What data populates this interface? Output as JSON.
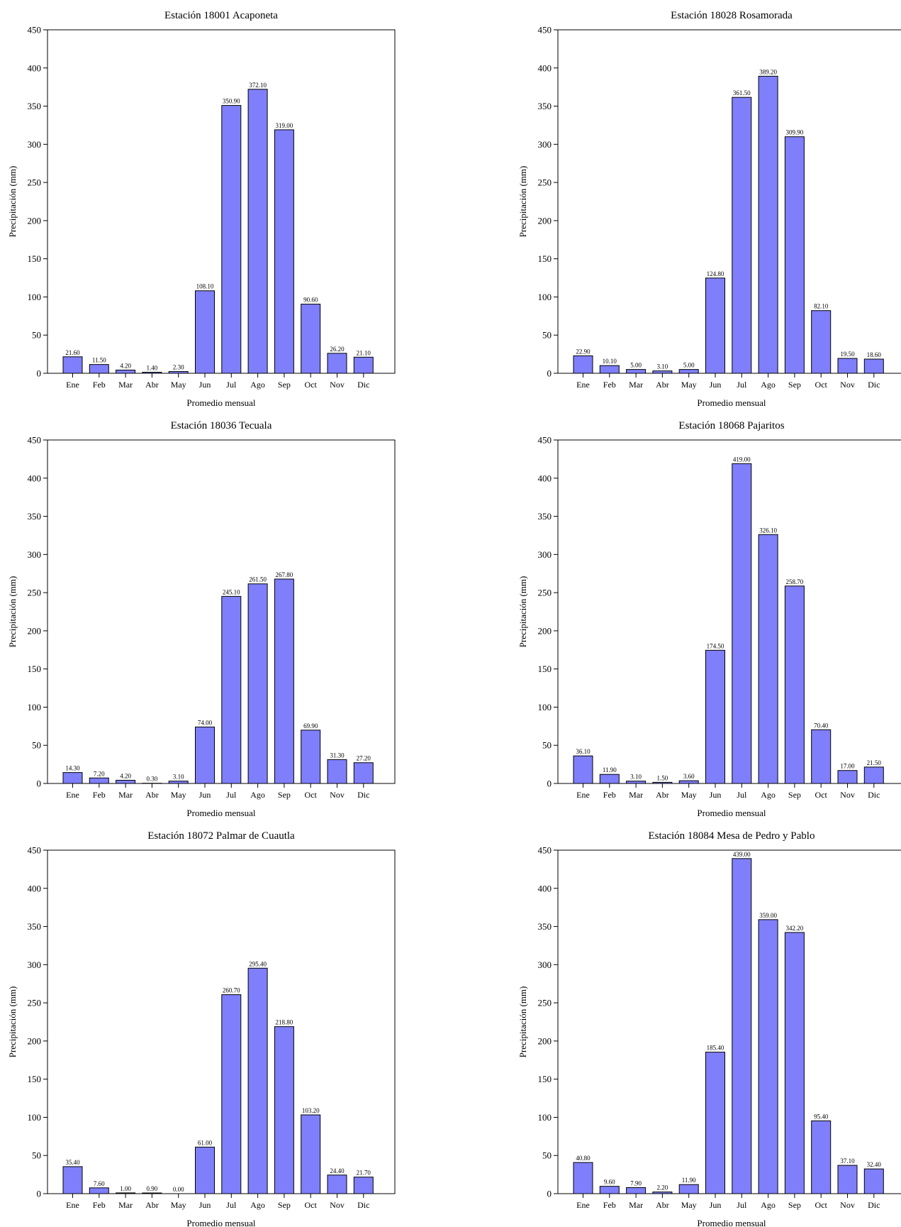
{
  "colors": {
    "bar": "#7f7ffb",
    "stroke": "#000000"
  },
  "chart_data": [
    {
      "type": "bar",
      "title": "Estación 18001 Acaponeta",
      "xlabel": "Promedio mensual",
      "ylabel": "Precipitación (mm)",
      "ylim": [
        0,
        450
      ],
      "yticks": [
        0,
        50,
        100,
        150,
        200,
        250,
        300,
        350,
        400,
        450
      ],
      "categories": [
        "Ene",
        "Feb",
        "Mar",
        "Abr",
        "May",
        "Jun",
        "Jul",
        "Ago",
        "Sep",
        "Oct",
        "Nov",
        "Dic"
      ],
      "values": [
        21.6,
        11.5,
        4.2,
        1.4,
        2.3,
        108.1,
        350.9,
        372.1,
        319.0,
        90.6,
        26.2,
        21.1
      ],
      "labels": [
        "21.60",
        "11.50",
        "4.20",
        "1.40",
        "2.30",
        "108.10",
        "350.90",
        "372.10",
        "319.00",
        "90.60",
        "26.20",
        "21.10"
      ],
      "grid": false
    },
    {
      "type": "bar",
      "title": "Estación 18028 Rosamorada",
      "xlabel": "Promedio mensual",
      "ylabel": "Precipitación (mm)",
      "ylim": [
        0,
        450
      ],
      "yticks": [
        0,
        50,
        100,
        150,
        200,
        250,
        300,
        350,
        400,
        450
      ],
      "categories": [
        "Ene",
        "Feb",
        "Mar",
        "Abr",
        "May",
        "Jun",
        "Jul",
        "Ago",
        "Sep",
        "Oct",
        "Nov",
        "Dic"
      ],
      "values": [
        22.9,
        10.1,
        5.0,
        3.1,
        5.0,
        124.8,
        361.5,
        389.2,
        309.9,
        82.1,
        19.5,
        18.6
      ],
      "labels": [
        "22.90",
        "10.10",
        "5.00",
        "3.10",
        "5.00",
        "124.80",
        "361.50",
        "389.20",
        "309.90",
        "82.10",
        "19.50",
        "18.60"
      ],
      "grid": false
    },
    {
      "type": "bar",
      "title": "Estación 18036 Tecuala",
      "xlabel": "Promedio mensual",
      "ylabel": "Precipitación (mm)",
      "ylim": [
        0,
        450
      ],
      "yticks": [
        0,
        50,
        100,
        150,
        200,
        250,
        300,
        350,
        400,
        450
      ],
      "categories": [
        "Ene",
        "Feb",
        "Mar",
        "Abr",
        "May",
        "Jun",
        "Jul",
        "Ago",
        "Sep",
        "Oct",
        "Nov",
        "Dic"
      ],
      "values": [
        14.3,
        7.2,
        4.2,
        0.3,
        3.1,
        74.0,
        245.1,
        261.5,
        267.8,
        69.9,
        31.3,
        27.2
      ],
      "labels": [
        "14.30",
        "7.20",
        "4.20",
        "0.30",
        "3.10",
        "74.00",
        "245.10",
        "261.50",
        "267.80",
        "69.90",
        "31.30",
        "27.20"
      ],
      "grid": false
    },
    {
      "type": "bar",
      "title": "Estación 18068 Pajaritos",
      "xlabel": "Promedio mensual",
      "ylabel": "Precipitación (mm)",
      "ylim": [
        0,
        450
      ],
      "yticks": [
        0,
        50,
        100,
        150,
        200,
        250,
        300,
        350,
        400,
        450
      ],
      "categories": [
        "Ene",
        "Feb",
        "Mar",
        "Abr",
        "May",
        "Jun",
        "Jul",
        "Ago",
        "Sep",
        "Oct",
        "Nov",
        "Dic"
      ],
      "values": [
        36.1,
        11.9,
        3.1,
        1.5,
        3.6,
        174.5,
        419.0,
        326.1,
        258.7,
        70.4,
        17.0,
        21.5
      ],
      "labels": [
        "36.10",
        "11.90",
        "3.10",
        "1.50",
        "3.60",
        "174.50",
        "419.00",
        "326.10",
        "258.70",
        "70.40",
        "17.00",
        "21.50"
      ],
      "grid": false
    },
    {
      "type": "bar",
      "title": "Estación 18072 Palmar de Cuautla",
      "xlabel": "Promedio mensual",
      "ylabel": "Precipitación (mm)",
      "ylim": [
        0,
        450
      ],
      "yticks": [
        0,
        50,
        100,
        150,
        200,
        250,
        300,
        350,
        400,
        450
      ],
      "categories": [
        "Ene",
        "Feb",
        "Mar",
        "Abr",
        "May",
        "Jun",
        "Jul",
        "Ago",
        "Sep",
        "Oct",
        "Nov",
        "Dic"
      ],
      "values": [
        35.4,
        7.6,
        1.0,
        0.9,
        0.0,
        61.0,
        260.7,
        295.4,
        218.8,
        103.2,
        24.4,
        21.7
      ],
      "labels": [
        "35.40",
        "7.60",
        "1.00",
        "0.90",
        "0.00",
        "61.00",
        "260.70",
        "295.40",
        "218.80",
        "103.20",
        "24.40",
        "21.70"
      ],
      "grid": false
    },
    {
      "type": "bar",
      "title": "Estación 18084 Mesa de Pedro y Pablo",
      "xlabel": "Promedio mensual",
      "ylabel": "Precipitación (mm)",
      "ylim": [
        0,
        450
      ],
      "yticks": [
        0,
        50,
        100,
        150,
        200,
        250,
        300,
        350,
        400,
        450
      ],
      "categories": [
        "Ene",
        "Feb",
        "Mar",
        "Abr",
        "May",
        "Jun",
        "Jul",
        "Ago",
        "Sep",
        "Oct",
        "Nov",
        "Dic"
      ],
      "values": [
        40.8,
        9.6,
        7.9,
        2.2,
        11.9,
        185.4,
        439.0,
        359.0,
        342.2,
        95.4,
        37.1,
        32.4
      ],
      "labels": [
        "40.80",
        "9.60",
        "7.90",
        "2.20",
        "11.90",
        "185.40",
        "439.00",
        "359.00",
        "342.20",
        "95.40",
        "37.10",
        "32.40"
      ],
      "grid": false
    }
  ]
}
